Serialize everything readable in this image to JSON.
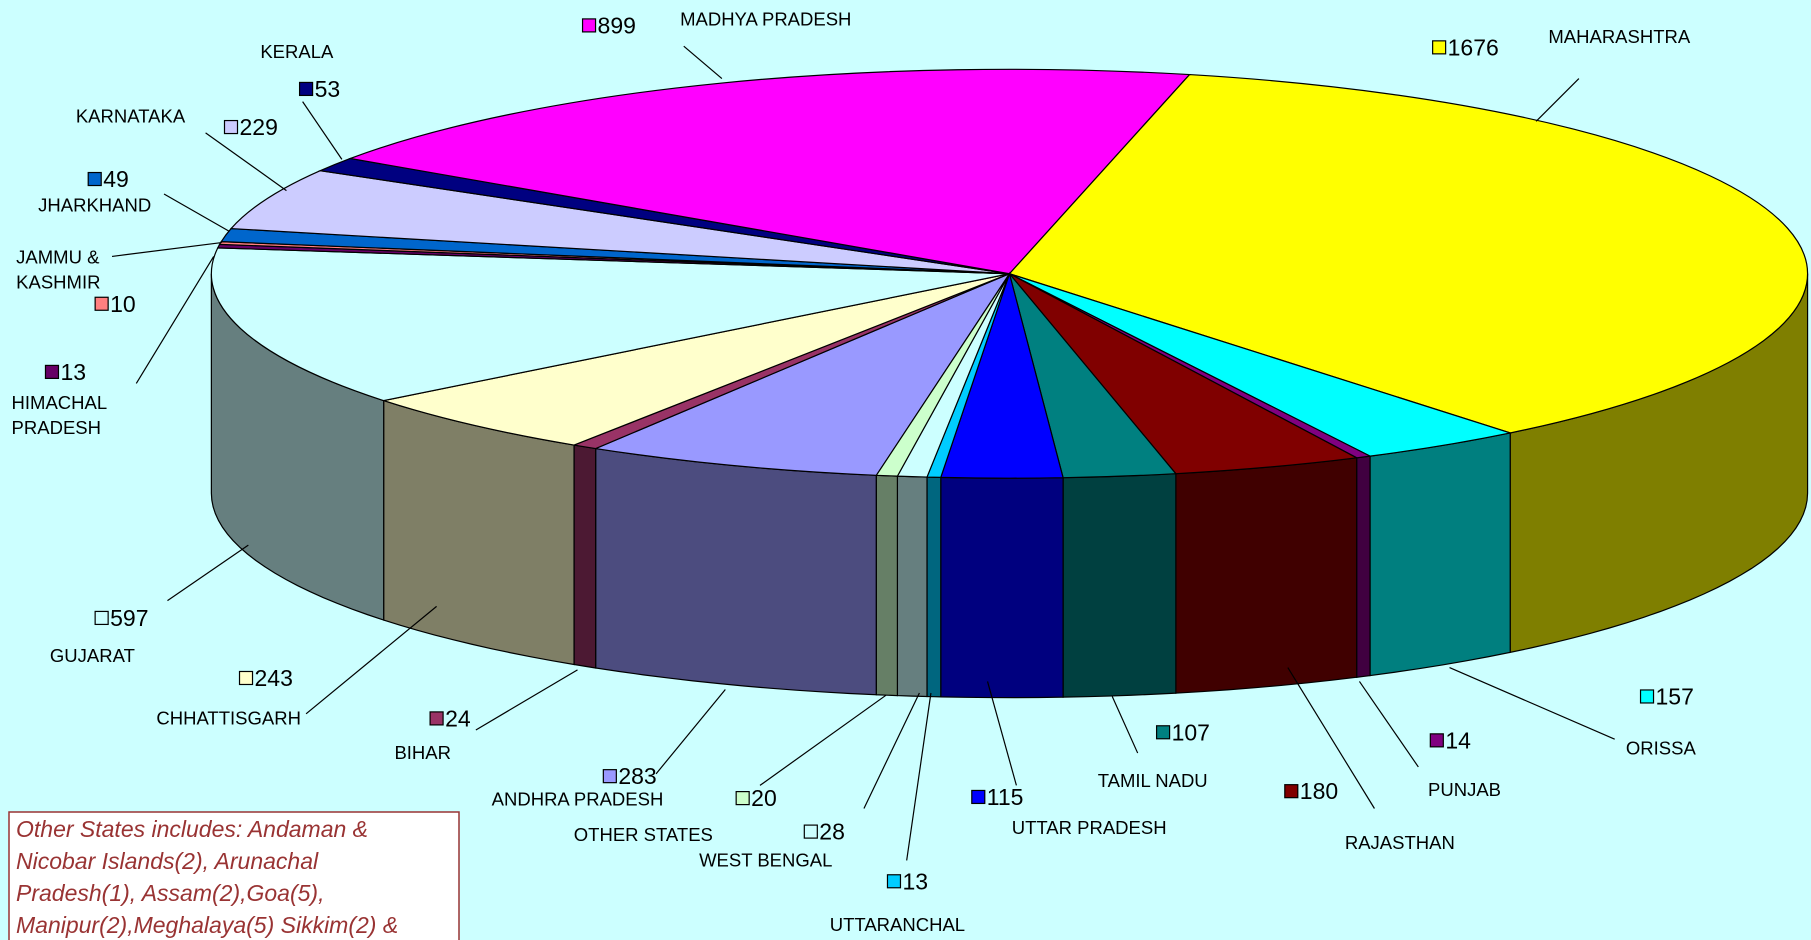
{
  "chart_data": {
    "type": "pie",
    "categories": [
      "ANDHRA PRADESH",
      "BIHAR",
      "CHHATTISGARH",
      "GUJARAT",
      "HIMACHAL PRADESH",
      "JAMMU & KASHMIR",
      "JHARKHAND",
      "KARNATAKA",
      "KERALA",
      "MADHYA PRADESH",
      "MAHARASHTRA",
      "ORISSA",
      "PUNJAB",
      "RAJASTHAN",
      "TAMIL NADU",
      "UTTAR PRADESH",
      "UTTARANCHAL",
      "WEST BENGAL",
      "OTHER STATES"
    ],
    "values": [
      283,
      24,
      243,
      597,
      13,
      10,
      49,
      229,
      53,
      899,
      1676,
      157,
      14,
      180,
      107,
      115,
      13,
      28,
      20
    ],
    "colors": [
      "#9999ff",
      "#993366",
      "#ffffcc",
      "#ccffff",
      "#660066",
      "#ff8080",
      "#0066cc",
      "#ccccff",
      "#000080",
      "#ff00ff",
      "#ffff00",
      "#00ffff",
      "#800080",
      "#800000",
      "#008080",
      "#0000ff",
      "#00ccff",
      "#ccffff",
      "#ccffcc"
    ],
    "note": [
      "Other States includes: Andaman &",
      "Nicobar Islands(2), Arunachal",
      "Pradesh(1), Assam(2),Goa(5),",
      "Manipur(2),Meghalaya(5) Sikkim(2) &"
    ]
  }
}
